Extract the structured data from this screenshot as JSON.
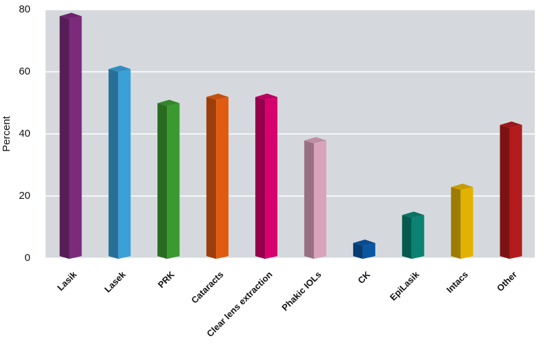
{
  "chart_data": {
    "type": "bar3d",
    "y_label": "Percent",
    "categories": [
      "Lasik",
      "Lasek",
      "PRK",
      "Cataracts",
      "Clear lens extraction",
      "Phakic IOLs",
      "CK",
      "EpiLasik",
      "Intacs",
      "Other"
    ],
    "values": [
      77,
      60,
      49,
      51,
      51,
      37,
      4,
      13,
      22,
      42
    ],
    "colors": [
      "#7b2a7c",
      "#3aa0d8",
      "#3a9a30",
      "#e05a10",
      "#d6006f",
      "#d9a3bb",
      "#0b56a3",
      "#0b8272",
      "#e3b200",
      "#b21c1c"
    ],
    "ylim": [
      0,
      80
    ],
    "yticks": [
      0,
      20,
      40,
      60,
      80
    ],
    "grid": true
  }
}
